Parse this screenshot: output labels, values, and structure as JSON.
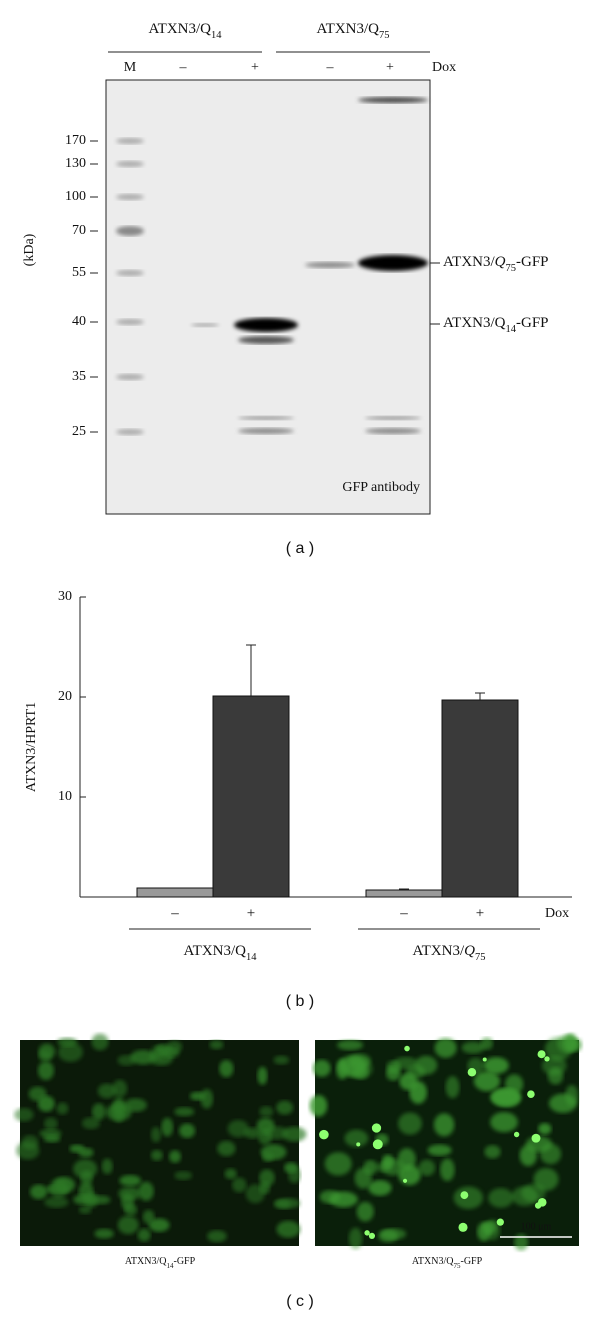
{
  "panel_a": {
    "groups": [
      [
        {
          "text": "ATXN3/Q"
        },
        {
          "text": "14",
          "sub": true
        }
      ],
      [
        {
          "text": "ATXN3/Q"
        },
        {
          "text": "75",
          "sub": true
        }
      ]
    ],
    "lanes": [
      "M",
      "–",
      "+",
      "–",
      "+"
    ],
    "treatment": "Dox",
    "axis_label": "(kDa)",
    "markers": [
      "170",
      "130",
      "100",
      "70",
      "55",
      "40",
      "35",
      "25"
    ],
    "bands": [
      [
        {
          "text": "ATXN3/"
        },
        {
          "text": "Q",
          "italic": true
        },
        {
          "text": "75",
          "sub": true
        },
        {
          "text": "-GFP"
        }
      ],
      [
        {
          "text": "ATXN3/Q"
        },
        {
          "text": "14",
          "sub": true
        },
        {
          "text": "-GFP"
        }
      ]
    ],
    "antibody": "GFP antibody",
    "caption": "( a )"
  },
  "chart_data": {
    "type": "bar",
    "ylabel": "ATXN3/HPRT1",
    "categories": [
      [
        {
          "text": "ATXN3/Q"
        },
        {
          "text": "14",
          "sub": true
        }
      ],
      [
        {
          "text": "ATXN3/"
        },
        {
          "text": "Q",
          "italic": true
        },
        {
          "text": "75",
          "sub": true
        }
      ]
    ],
    "series": [
      {
        "name": "–",
        "color": "#999999",
        "values": [
          0.9,
          0.7
        ],
        "errors": [
          null,
          0.1
        ]
      },
      {
        "name": "+",
        "color": "#3a3a3a",
        "values": [
          20.1,
          19.7
        ],
        "errors": [
          5.1,
          0.7
        ]
      }
    ],
    "treatment": "Dox",
    "ylim": [
      0,
      30
    ],
    "yticks": [
      10,
      20,
      30
    ],
    "caption": "( b )"
  },
  "panel_c": {
    "images": [
      [
        {
          "text": "ATXN3/Q"
        },
        {
          "text": "14",
          "sub": true
        },
        {
          "text": "-GFP"
        }
      ],
      [
        {
          "text": "ATXN3/Q"
        },
        {
          "text": "75",
          "sub": true
        },
        {
          "text": "-GFP"
        }
      ]
    ],
    "scale_bar": "100 μm",
    "caption": "( c )"
  }
}
